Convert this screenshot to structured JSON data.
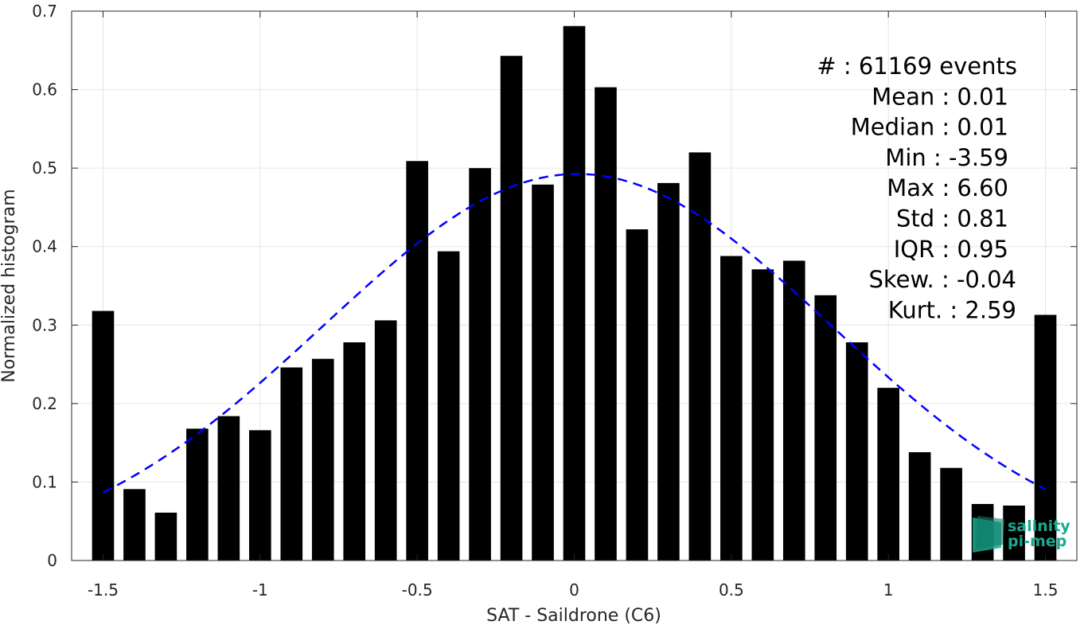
{
  "chart_data": {
    "type": "bar",
    "xlabel": "SAT - Saildrone (C6)",
    "ylabel": "Normalized histogram",
    "xlim": [
      -1.6,
      1.6
    ],
    "ylim": [
      0,
      0.7
    ],
    "xticks": [
      "-1.5",
      "-1",
      "-0.5",
      "0",
      "0.5",
      "1",
      "1.5"
    ],
    "xtick_values": [
      -1.5,
      -1,
      -0.5,
      0,
      0.5,
      1,
      1.5
    ],
    "yticks": [
      "0",
      "0.1",
      "0.2",
      "0.3",
      "0.4",
      "0.5",
      "0.6",
      "0.7"
    ],
    "ytick_values": [
      0,
      0.1,
      0.2,
      0.3,
      0.4,
      0.5,
      0.6,
      0.7
    ],
    "grid": true,
    "bar_color": "#000000",
    "bins": [
      -1.5,
      -1.4,
      -1.3,
      -1.2,
      -1.1,
      -1.0,
      -0.9,
      -0.8,
      -0.7,
      -0.6,
      -0.5,
      -0.4,
      -0.3,
      -0.2,
      -0.1,
      0.0,
      0.1,
      0.2,
      0.3,
      0.4,
      0.5,
      0.6,
      0.7,
      0.8,
      0.9,
      1.0,
      1.1,
      1.2,
      1.3,
      1.4,
      1.5
    ],
    "values": [
      0.318,
      0.091,
      0.061,
      0.168,
      0.184,
      0.166,
      0.246,
      0.257,
      0.278,
      0.306,
      0.509,
      0.394,
      0.5,
      0.643,
      0.479,
      0.681,
      0.603,
      0.422,
      0.481,
      0.52,
      0.388,
      0.371,
      0.382,
      0.338,
      0.278,
      0.22,
      0.138,
      0.118,
      0.072,
      0.07,
      0.313
    ],
    "fit_curve": {
      "type": "gaussian",
      "mean": 0.01,
      "std": 0.81,
      "x_range": [
        -1.5,
        1.5
      ],
      "color": "#0000ff",
      "style": "dashed"
    },
    "stats": [
      "#  : 61169 events",
      "Mean : 0.01",
      "Median : 0.01",
      "Min : -3.59",
      "Max : 6.60",
      "Std : 0.81",
      "IQR : 0.95",
      "Skew. : -0.04",
      "Kurt. : 2.59"
    ]
  },
  "logo": {
    "line1": "salinity",
    "line2": "pi-mep",
    "color": "#1aa88f"
  }
}
